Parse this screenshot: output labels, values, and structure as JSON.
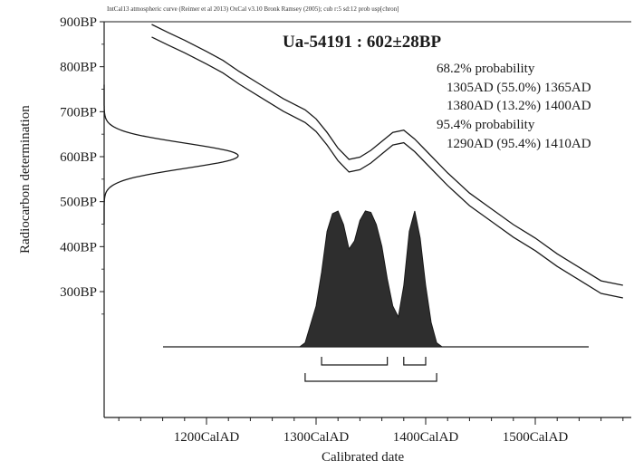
{
  "header": {
    "calibration_info": "IntCal13 atmospheric curve (Reimer et al 2013) OxCal v3.10 Bronk Ramsey (2005); cub r:5 sd:12 prob usp[chron]"
  },
  "chart_data": {
    "type": "area",
    "title": "Ua-54191 : 602±28BP",
    "xlabel": "Calibrated date",
    "ylabel": "Radiocarbon determination",
    "xlim": [
      1100,
      1590
    ],
    "ylim": [
      200,
      900
    ],
    "x_ticks": [
      {
        "value": 1200,
        "label": "1200CalAD"
      },
      {
        "value": 1300,
        "label": "1300CalAD"
      },
      {
        "value": 1400,
        "label": "1400CalAD"
      },
      {
        "value": 1500,
        "label": "1500CalAD"
      }
    ],
    "y_ticks": [
      {
        "value": 900,
        "label": "900BP"
      },
      {
        "value": 800,
        "label": "800BP"
      },
      {
        "value": 700,
        "label": "700BP"
      },
      {
        "value": 600,
        "label": "600BP"
      },
      {
        "value": 500,
        "label": "500BP"
      },
      {
        "value": 400,
        "label": "400BP"
      },
      {
        "value": 300,
        "label": "300BP"
      }
    ],
    "radiocarbon": {
      "mean": 602,
      "sd": 28
    },
    "calibration_curve": {
      "x": [
        1150,
        1165,
        1180,
        1200,
        1215,
        1230,
        1250,
        1270,
        1290,
        1300,
        1310,
        1320,
        1330,
        1340,
        1350,
        1360,
        1370,
        1380,
        1390,
        1400,
        1420,
        1440,
        1460,
        1480,
        1500,
        1520,
        1540,
        1560,
        1580
      ],
      "y": [
        880,
        862,
        845,
        820,
        800,
        775,
        745,
        715,
        690,
        670,
        640,
        605,
        580,
        585,
        600,
        620,
        640,
        645,
        625,
        600,
        550,
        505,
        470,
        435,
        405,
        370,
        340,
        310,
        300
      ],
      "band": 14
    },
    "calibrated_distribution": {
      "x": [
        1285,
        1290,
        1300,
        1305,
        1310,
        1315,
        1320,
        1325,
        1330,
        1335,
        1340,
        1345,
        1350,
        1355,
        1360,
        1365,
        1370,
        1375,
        1380,
        1385,
        1390,
        1395,
        1400,
        1405,
        1410,
        1415
      ],
      "density": [
        0,
        0.03,
        0.3,
        0.55,
        0.85,
        0.98,
        1.0,
        0.9,
        0.72,
        0.78,
        0.93,
        1.0,
        0.99,
        0.9,
        0.74,
        0.5,
        0.3,
        0.22,
        0.45,
        0.85,
        1.0,
        0.8,
        0.45,
        0.18,
        0.03,
        0
      ]
    },
    "ranges": [
      {
        "level": "68.2%",
        "from": 1305,
        "to": 1365
      },
      {
        "level": "68.2%",
        "from": 1380,
        "to": 1400
      },
      {
        "level": "95.4%",
        "from": 1290,
        "to": 1410
      }
    ],
    "annotations": [
      "68.2% probability",
      "1305AD (55.0%) 1365AD",
      "1380AD (13.2%) 1400AD",
      "95.4% probability",
      "1290AD (95.4%) 1410AD"
    ]
  }
}
